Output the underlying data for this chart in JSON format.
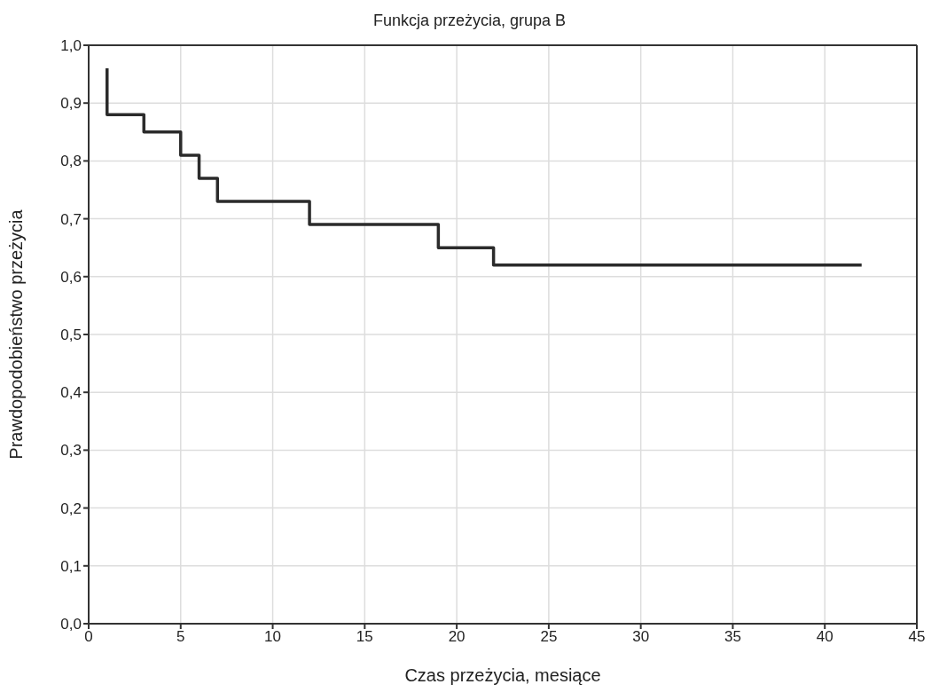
{
  "chart_data": {
    "type": "step",
    "title": "Funkcja przeżycia, grupa B",
    "xlabel": "Czas przeżycia, mesiące",
    "ylabel": "Prawdopodobieństwo przeżycia",
    "x": [
      1,
      1,
      3,
      5,
      6,
      7,
      12,
      19,
      22,
      42
    ],
    "series": [
      {
        "color": "#2b2b2b",
        "values": [
          0.96,
          0.88,
          0.85,
          0.81,
          0.77,
          0.73,
          0.69,
          0.65,
          0.62,
          0.62
        ]
      }
    ],
    "xlim": [
      0,
      45
    ],
    "xticks": [
      0,
      5,
      10,
      15,
      20,
      25,
      30,
      35,
      40,
      45
    ],
    "ylim": [
      0,
      1
    ],
    "yticks": [
      {
        "value": 0,
        "label": "0,0"
      },
      {
        "value": 0.1,
        "label": "0,1"
      },
      {
        "value": 0.2,
        "label": "0,2"
      },
      {
        "value": 0.3,
        "label": "0,3"
      },
      {
        "value": 0.4,
        "label": "0,4"
      },
      {
        "value": 0.5,
        "label": "0,5"
      },
      {
        "value": 0.6,
        "label": "0,6"
      },
      {
        "value": 0.7,
        "label": "0,7"
      },
      {
        "value": 0.8,
        "label": "0,8"
      },
      {
        "value": 0.9,
        "label": "0,9"
      },
      {
        "value": 1,
        "label": "1,0"
      }
    ],
    "grid": true,
    "legend": false,
    "marker": "none",
    "line_style": "solid"
  }
}
